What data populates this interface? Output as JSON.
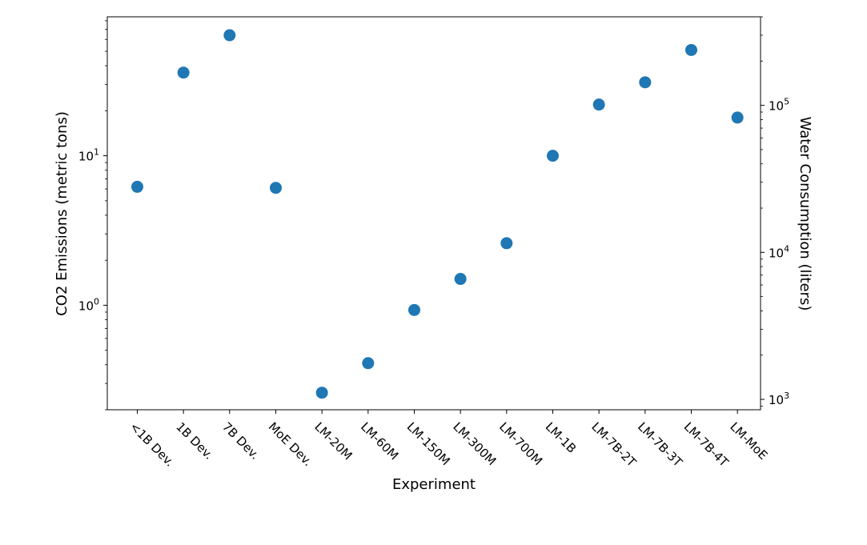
{
  "chart_data": {
    "type": "scatter",
    "title": "",
    "xlabel": "Experiment",
    "ylabel": "CO2 Emissions (metric tons)",
    "y2label": "Water Consumption (liters)",
    "yscale": "log",
    "y2scale": "log",
    "ylim": [
      0.2,
      85
    ],
    "y2lim": [
      850,
      400000
    ],
    "yticks": [
      {
        "value": 1,
        "base": "10",
        "exp": "0"
      },
      {
        "value": 10,
        "base": "10",
        "exp": "1"
      }
    ],
    "y2ticks": [
      {
        "value": 1000,
        "base": "10",
        "exp": "3"
      },
      {
        "value": 10000,
        "base": "10",
        "exp": "4"
      },
      {
        "value": 100000,
        "base": "10",
        "exp": "5"
      }
    ],
    "categories": [
      "<1B Dev.",
      "1B Dev.",
      "7B Dev.",
      "MoE Dev.",
      "LM-20M",
      "LM-60M",
      "LM-150M",
      "LM-300M",
      "LM-700M",
      "LM-1B",
      "LM-7B-2T",
      "LM-7B-3T",
      "LM-7B-4T",
      "LM-MoE"
    ],
    "series": [
      {
        "values": [
          6.2,
          36,
          64,
          6.1,
          0.26,
          0.41,
          0.93,
          1.5,
          2.6,
          10,
          22,
          31,
          51,
          18
        ],
        "color": "#1f77b4"
      }
    ],
    "grid": false,
    "legend": "none"
  }
}
